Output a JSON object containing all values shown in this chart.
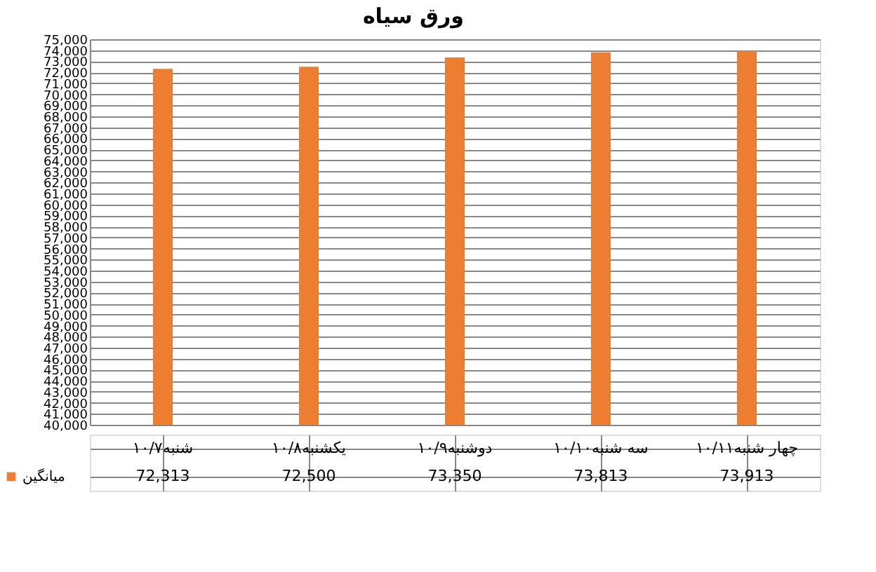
{
  "chart_data": {
    "type": "bar",
    "title": "ورق سیاه",
    "categories": [
      "شنبه۱۰/۷",
      "یکشنبه۱۰/۸",
      "دوشنبه۱۰/۹",
      "سه شنبه۱۰/۱۰",
      "چهار شنبه۱۰/۱۱"
    ],
    "series": [
      {
        "name": "میانگین",
        "color": "#ed7d31",
        "values": [
          72313,
          72500,
          73350,
          73813,
          73913
        ],
        "value_labels": [
          "72,313",
          "72,500",
          "73,350",
          "73,813",
          "73,913"
        ]
      }
    ],
    "ylim": [
      40000,
      75000
    ],
    "yticks": [
      {
        "value": 40000,
        "label": "40,000"
      },
      {
        "value": 41000,
        "label": "41,000"
      },
      {
        "value": 42000,
        "label": "42,000"
      },
      {
        "value": 43000,
        "label": "43,000"
      },
      {
        "value": 44000,
        "label": "44,000"
      },
      {
        "value": 45000,
        "label": "45,000"
      },
      {
        "value": 46000,
        "label": "46,000"
      },
      {
        "value": 47000,
        "label": "47,000"
      },
      {
        "value": 48000,
        "label": "48,000"
      },
      {
        "value": 49000,
        "label": "49,000"
      },
      {
        "value": 50000,
        "label": "50,000"
      },
      {
        "value": 51000,
        "label": "51,000"
      },
      {
        "value": 52000,
        "label": "52,000"
      },
      {
        "value": 53000,
        "label": "53,000"
      },
      {
        "value": 54000,
        "label": "54,000"
      },
      {
        "value": 55000,
        "label": "55,000"
      },
      {
        "value": 56000,
        "label": "56,000"
      },
      {
        "value": 57000,
        "label": "57,000"
      },
      {
        "value": 58000,
        "label": "58,000"
      },
      {
        "value": 59000,
        "label": "59,000"
      },
      {
        "value": 60000,
        "label": "60,000"
      },
      {
        "value": 61000,
        "label": "61,000"
      },
      {
        "value": 62000,
        "label": "62,000"
      },
      {
        "value": 63000,
        "label": "63,000"
      },
      {
        "value": 64000,
        "label": "64,000"
      },
      {
        "value": 65000,
        "label": "65,000"
      },
      {
        "value": 66000,
        "label": "66,000"
      },
      {
        "value": 67000,
        "label": "67,000"
      },
      {
        "value": 68000,
        "label": "68,000"
      },
      {
        "value": 69000,
        "label": "69,000"
      },
      {
        "value": 70000,
        "label": "70,000"
      },
      {
        "value": 71000,
        "label": "71,000"
      },
      {
        "value": 72000,
        "label": "72,000"
      },
      {
        "value": 73000,
        "label": "73,000"
      },
      {
        "value": 74000,
        "label": "74,000"
      },
      {
        "value": 75000,
        "label": "75,000"
      }
    ],
    "grid": "y",
    "legend": "bottom left"
  }
}
